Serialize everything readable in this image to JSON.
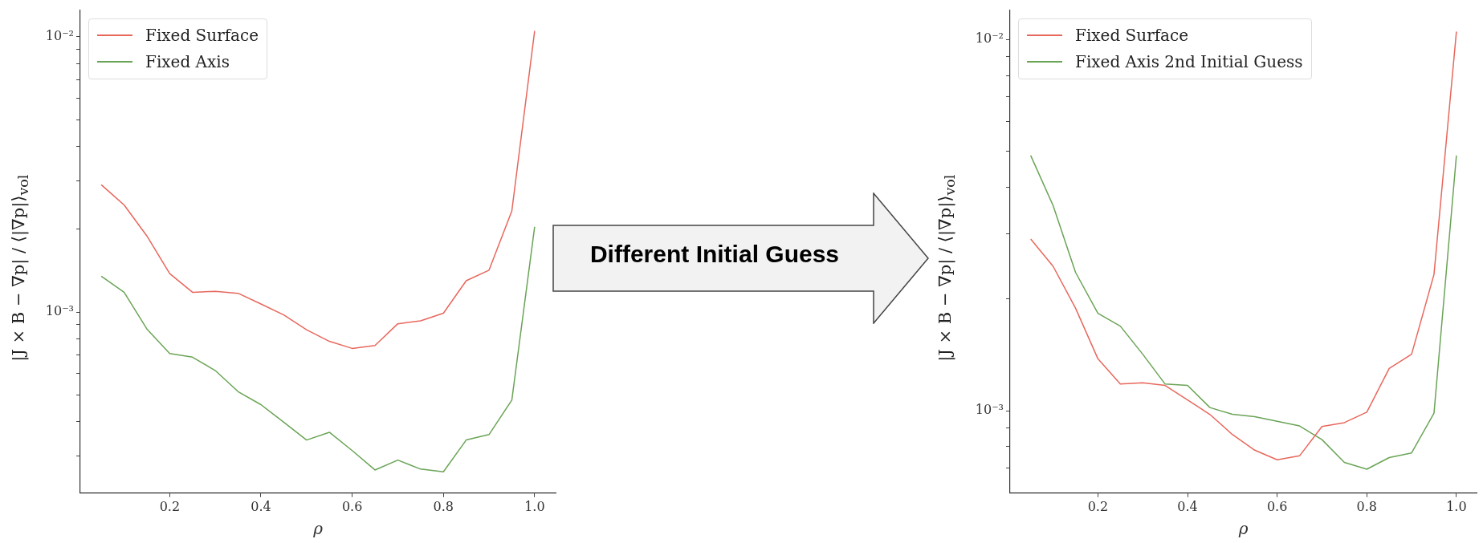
{
  "chart_data": [
    {
      "type": "line",
      "xlabel": "ρ",
      "ylabel": "|J × B − ∇p| / ⟨|∇p|⟩$_{vol}$",
      "log": "y",
      "legend": "top left",
      "annotations": [
        "Different Initial Guess"
      ],
      "x": [
        0.05,
        0.1,
        0.15,
        0.2,
        0.25,
        0.3,
        0.35,
        0.4,
        0.45,
        0.5,
        0.55,
        0.6,
        0.65,
        0.7,
        0.75,
        0.8,
        0.85,
        0.9,
        0.95,
        1.0
      ],
      "xlim": [
        0.004,
        1.046
      ],
      "xticks": [
        0.2,
        0.4,
        0.6,
        0.8,
        {
          "value": 1,
          "label": "1.0"
        }
      ],
      "ylim": [
        0.00022,
        0.0125
      ],
      "yticks": [
        {
          "value": 0.0003,
          "label": null
        },
        {
          "value": 0.0004,
          "label": null
        },
        {
          "value": 0.0005,
          "label": null
        },
        {
          "value": 0.0006,
          "label": null
        },
        {
          "value": 0.0007,
          "label": null
        },
        {
          "value": 0.0008,
          "label": null
        },
        {
          "value": 0.0009,
          "label": null
        },
        {
          "value": 0.001,
          "label": "10⁻³"
        },
        {
          "value": 0.002,
          "label": null
        },
        {
          "value": 0.003,
          "label": null
        },
        {
          "value": 0.004,
          "label": null
        },
        {
          "value": 0.005,
          "label": null
        },
        {
          "value": 0.006,
          "label": null
        },
        {
          "value": 0.007,
          "label": null
        },
        {
          "value": 0.008,
          "label": null
        },
        {
          "value": 0.009,
          "label": null
        },
        {
          "value": 0.01,
          "label": "10⁻²"
        }
      ],
      "series": [
        {
          "name": "Fixed Surface",
          "color": "#e8675c",
          "values": [
            0.0029,
            0.00245,
            0.00189,
            0.00138,
            0.00118,
            0.00119,
            0.00117,
            0.00107,
            0.000977,
            0.000863,
            0.000783,
            0.000738,
            0.000756,
            0.000907,
            0.000929,
            0.000991,
            0.0013,
            0.00142,
            0.00233,
            0.0105
          ]
        },
        {
          "name": "Fixed Axis",
          "color": "#6aa456",
          "values": [
            0.00135,
            0.00118,
            0.000868,
            0.000707,
            0.000686,
            0.000613,
            0.000514,
            0.000461,
            0.000398,
            0.000343,
            0.000366,
            0.000314,
            0.000267,
            0.00029,
            0.000269,
            0.000263,
            0.000343,
            0.000359,
            0.000479,
            0.00204
          ]
        }
      ]
    },
    {
      "type": "line",
      "xlabel": "ρ",
      "ylabel": "|J × B − ∇p| / ⟨|∇p|⟩$_{vol}$",
      "log": "y",
      "legend": "top left",
      "x": [
        0.05,
        0.1,
        0.15,
        0.2,
        0.25,
        0.3,
        0.35,
        0.4,
        0.45,
        0.5,
        0.55,
        0.6,
        0.65,
        0.7,
        0.75,
        0.8,
        0.85,
        0.9,
        0.95,
        1.0
      ],
      "xlim": [
        0.004,
        1.045
      ],
      "xticks": [
        0.2,
        0.4,
        0.6,
        0.8,
        {
          "value": 1,
          "label": "1.0"
        }
      ],
      "ylim": [
        0.000605,
        0.012
      ],
      "yticks": [
        {
          "value": 0.0007,
          "label": null
        },
        {
          "value": 0.0008,
          "label": null
        },
        {
          "value": 0.0009,
          "label": null
        },
        {
          "value": 0.001,
          "label": "10⁻³"
        },
        {
          "value": 0.002,
          "label": null
        },
        {
          "value": 0.003,
          "label": null
        },
        {
          "value": 0.004,
          "label": null
        },
        {
          "value": 0.005,
          "label": null
        },
        {
          "value": 0.006,
          "label": null
        },
        {
          "value": 0.007,
          "label": null
        },
        {
          "value": 0.008,
          "label": null
        },
        {
          "value": 0.009,
          "label": null
        },
        {
          "value": 0.01,
          "label": "10⁻²"
        }
      ],
      "series": [
        {
          "name": "Fixed Surface",
          "color": "#e8675c",
          "values": [
            0.0029,
            0.00245,
            0.00189,
            0.00138,
            0.00118,
            0.00119,
            0.00117,
            0.00107,
            0.000977,
            0.000863,
            0.000783,
            0.000738,
            0.000756,
            0.000907,
            0.000929,
            0.000991,
            0.0013,
            0.00142,
            0.00233,
            0.0105
          ]
        },
        {
          "name": "Fixed Axis 2nd Initial Guess",
          "color": "#6aa456",
          "values": [
            0.00487,
            0.00357,
            0.00236,
            0.00183,
            0.00169,
            0.00142,
            0.00118,
            0.00117,
            0.00102,
            0.000978,
            0.000964,
            0.000937,
            0.00091,
            0.000836,
            0.000726,
            0.000696,
            0.000748,
            0.00077,
            0.000985,
            0.00487
          ]
        }
      ]
    }
  ]
}
